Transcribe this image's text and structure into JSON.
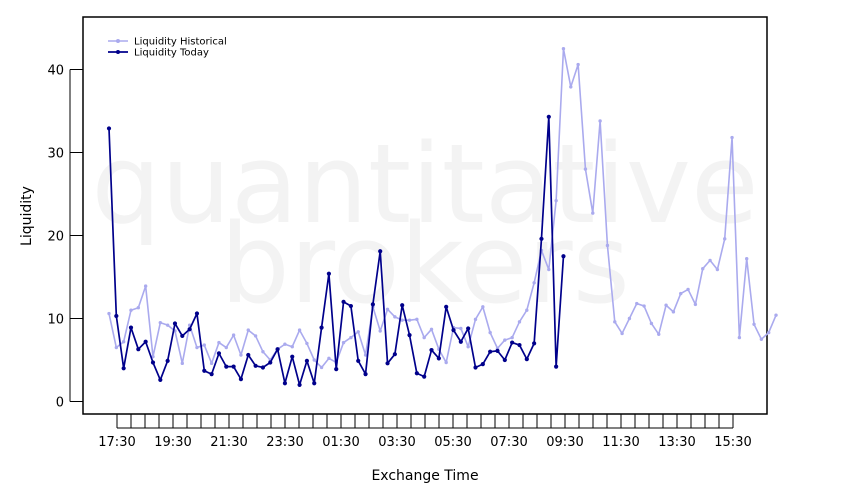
{
  "watermark": {
    "line1": "quantitative",
    "line2": "brokers"
  },
  "chart_data": {
    "type": "line",
    "xlabel": "Exchange Time",
    "ylabel": "Liquidity",
    "ylim": [
      -1.5,
      46
    ],
    "x_ticks": [
      "17:30",
      "19:30",
      "21:30",
      "23:30",
      "01:30",
      "03:30",
      "05:30",
      "07:30",
      "09:30",
      "11:30",
      "13:30",
      "15:30"
    ],
    "y_ticks": [
      0,
      10,
      20,
      30,
      40
    ],
    "grid": false,
    "legend_position": "top-left",
    "series": [
      {
        "name": "Liquidity Historical",
        "color": "#aaaaee",
        "values": [
          10.6,
          6.5,
          7.2,
          11.0,
          11.3,
          13.9,
          5.4,
          9.5,
          9.2,
          8.5,
          4.6,
          9.2,
          6.5,
          6.8,
          4.6,
          7.1,
          6.5,
          8.0,
          5.6,
          8.6,
          7.9,
          6.0,
          5.0,
          6.3,
          6.9,
          6.6,
          8.6,
          7.0,
          5.0,
          4.1,
          5.2,
          4.7,
          7.1,
          7.7,
          8.4,
          5.6,
          11.4,
          8.5,
          11.1,
          10.2,
          9.8,
          9.8,
          9.9,
          7.7,
          8.7,
          6.3,
          4.7,
          8.9,
          8.8,
          6.6,
          9.9,
          11.4,
          8.3,
          6.4,
          7.4,
          7.7,
          9.6,
          11.0,
          14.3,
          18.2,
          15.9,
          24.2,
          42.5,
          37.9,
          40.6,
          28.0,
          22.7,
          33.8,
          18.8,
          9.6,
          8.2,
          10.0,
          11.8,
          11.5,
          9.4,
          8.1,
          11.6,
          10.8,
          13.0,
          13.5,
          11.7,
          16.0,
          17.0,
          15.9,
          19.6,
          31.8,
          7.7,
          17.2,
          9.3,
          7.5,
          8.3,
          10.4
        ]
      },
      {
        "name": "Liquidity Today",
        "color": "#00008b",
        "values": [
          32.9,
          10.3,
          4.0,
          8.9,
          6.3,
          7.2,
          4.7,
          2.6,
          4.9,
          9.4,
          7.9,
          8.7,
          10.6,
          3.7,
          3.3,
          5.8,
          4.2,
          4.2,
          2.7,
          5.6,
          4.3,
          4.1,
          4.7,
          6.3,
          2.2,
          5.4,
          2.0,
          4.9,
          2.2,
          8.9,
          15.4,
          3.9,
          12.0,
          11.5,
          4.9,
          3.3,
          11.7,
          18.1,
          4.6,
          5.7,
          11.6,
          8.0,
          3.4,
          3.0,
          6.2,
          5.2,
          11.4,
          8.6,
          7.2,
          8.8,
          4.1,
          4.5,
          6.0,
          6.1,
          5.0,
          7.1,
          6.8,
          5.1,
          7.0,
          19.6,
          34.3,
          4.2,
          17.5
        ]
      }
    ]
  }
}
